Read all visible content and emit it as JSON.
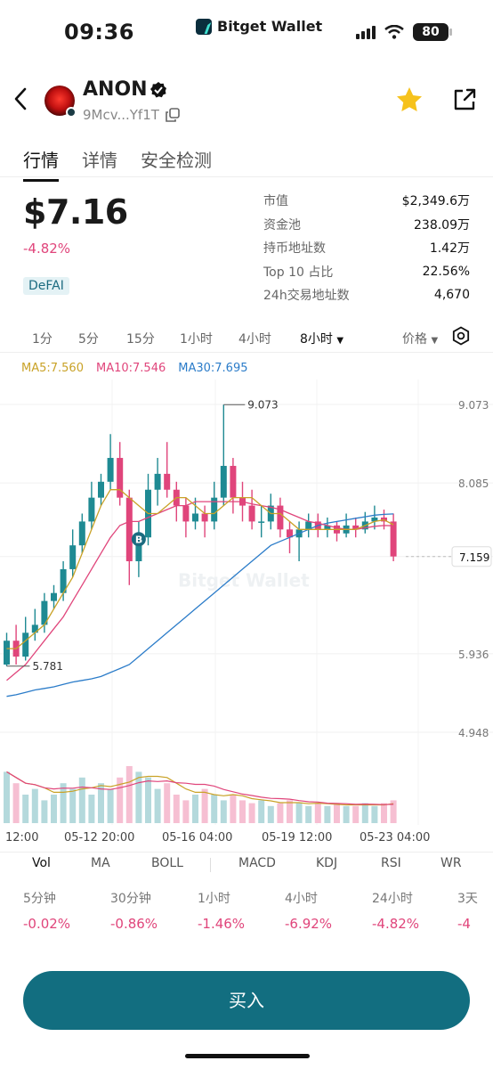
{
  "status": {
    "time": "09:36",
    "app_name": "Bitget Wallet",
    "battery": "80"
  },
  "header": {
    "token_name": "ANON",
    "address": "9Mcv...Yf1T",
    "avatar_icon": "anon-logo",
    "star_color": "#f6c21c"
  },
  "tabs": [
    {
      "label": "行情",
      "active": true
    },
    {
      "label": "详情"
    },
    {
      "label": "安全检测"
    }
  ],
  "price": {
    "value": "$7.16",
    "change": "-4.82%",
    "tag": "DeFAI"
  },
  "stats": [
    {
      "label": "市值",
      "value": "$2,349.6万"
    },
    {
      "label": "资金池",
      "value": "238.09万"
    },
    {
      "label": "持币地址数",
      "value": "1.42万"
    },
    {
      "label": "Top 10 占比",
      "value": "22.56%"
    },
    {
      "label": "24h交易地址数",
      "value": "4,670"
    }
  ],
  "intervals": [
    "1分",
    "5分",
    "15分",
    "1小时",
    "4小时",
    "8小时",
    "价格"
  ],
  "selected_interval": "8小时",
  "ma": {
    "ma5": "MA5:7.560",
    "ma10": "MA10:7.546",
    "ma30": "MA30:7.695",
    "colors": {
      "ma5": "#c9a227",
      "ma10": "#e0457b",
      "ma30": "#2b7cc9"
    }
  },
  "chart_data": {
    "type": "candlestick",
    "y_ticks": [
      "9.073",
      "8.085",
      "7.159",
      "5.936",
      "4.948"
    ],
    "x_ticks": [
      "12:00",
      "05-12 20:00",
      "05-16 04:00",
      "05-19 12:00",
      "05-23 04:00"
    ],
    "high_label": "9.073",
    "low_label": "5.781",
    "current_price": "7.159",
    "marker": "B",
    "watermark": "Bitget Wallet",
    "ylim": [
      4.948,
      9.073
    ],
    "up_color": "#1f8a93",
    "down_color": "#e0457b",
    "candles": [
      [
        5.8,
        6.1,
        6.2,
        5.78
      ],
      [
        6.1,
        5.9,
        6.3,
        5.8
      ],
      [
        5.9,
        6.2,
        6.4,
        5.85
      ],
      [
        6.2,
        6.3,
        6.5,
        6.1
      ],
      [
        6.3,
        6.6,
        6.7,
        6.2
      ],
      [
        6.6,
        6.7,
        6.8,
        6.5
      ],
      [
        6.7,
        7.0,
        7.1,
        6.6
      ],
      [
        7.0,
        7.3,
        7.5,
        6.9
      ],
      [
        7.3,
        7.6,
        7.7,
        7.2
      ],
      [
        7.6,
        7.9,
        8.1,
        7.5
      ],
      [
        7.9,
        8.1,
        8.2,
        7.8
      ],
      [
        8.1,
        8.4,
        8.7,
        8.0
      ],
      [
        8.4,
        7.9,
        8.6,
        7.8
      ],
      [
        7.9,
        7.1,
        8.0,
        6.8
      ],
      [
        7.1,
        7.4,
        7.6,
        6.9
      ],
      [
        7.4,
        8.0,
        8.2,
        7.3
      ],
      [
        8.0,
        8.2,
        8.4,
        7.8
      ],
      [
        8.2,
        8.0,
        8.6,
        7.9
      ],
      [
        8.0,
        7.8,
        8.1,
        7.6
      ],
      [
        7.8,
        7.6,
        7.9,
        7.4
      ],
      [
        7.6,
        7.7,
        7.9,
        7.5
      ],
      [
        7.7,
        7.6,
        7.8,
        7.4
      ],
      [
        7.6,
        7.9,
        8.1,
        7.5
      ],
      [
        7.9,
        8.3,
        9.07,
        7.8
      ],
      [
        8.3,
        7.9,
        8.4,
        7.7
      ],
      [
        7.9,
        7.8,
        8.1,
        7.6
      ],
      [
        7.8,
        7.6,
        8.0,
        7.5
      ],
      [
        7.6,
        7.6,
        7.8,
        7.4
      ],
      [
        7.6,
        7.8,
        7.95,
        7.5
      ],
      [
        7.8,
        7.5,
        7.9,
        7.4
      ],
      [
        7.5,
        7.4,
        7.6,
        7.2
      ],
      [
        7.4,
        7.5,
        7.6,
        7.1
      ],
      [
        7.5,
        7.6,
        7.7,
        7.4
      ],
      [
        7.6,
        7.5,
        7.7,
        7.4
      ],
      [
        7.5,
        7.55,
        7.65,
        7.4
      ],
      [
        7.55,
        7.45,
        7.6,
        7.35
      ],
      [
        7.45,
        7.55,
        7.7,
        7.4
      ],
      [
        7.55,
        7.5,
        7.65,
        7.4
      ],
      [
        7.5,
        7.6,
        7.72,
        7.45
      ],
      [
        7.6,
        7.65,
        7.8,
        7.5
      ],
      [
        7.65,
        7.6,
        7.75,
        7.5
      ],
      [
        7.6,
        7.16,
        7.7,
        7.1
      ]
    ],
    "ma5": [
      6.0,
      6.0,
      6.1,
      6.2,
      6.3,
      6.5,
      6.7,
      6.9,
      7.2,
      7.5,
      7.8,
      8.0,
      8.0,
      7.9,
      7.8,
      7.7,
      7.7,
      7.8,
      7.9,
      7.9,
      7.8,
      7.7,
      7.7,
      7.8,
      7.9,
      7.9,
      7.9,
      7.8,
      7.7,
      7.7,
      7.6,
      7.5,
      7.5,
      7.5,
      7.5,
      7.5,
      7.5,
      7.5,
      7.55,
      7.6,
      7.62,
      7.56
    ],
    "ma10": [
      5.6,
      5.7,
      5.8,
      5.95,
      6.1,
      6.25,
      6.4,
      6.6,
      6.8,
      7.0,
      7.2,
      7.4,
      7.55,
      7.6,
      7.6,
      7.65,
      7.7,
      7.75,
      7.8,
      7.8,
      7.85,
      7.85,
      7.85,
      7.85,
      7.85,
      7.85,
      7.82,
      7.8,
      7.78,
      7.75,
      7.7,
      7.65,
      7.6,
      7.58,
      7.55,
      7.52,
      7.5,
      7.5,
      7.52,
      7.54,
      7.55,
      7.546
    ],
    "ma30": [
      5.4,
      5.42,
      5.45,
      5.48,
      5.5,
      5.52,
      5.55,
      5.58,
      5.6,
      5.62,
      5.65,
      5.7,
      5.75,
      5.8,
      5.9,
      6.0,
      6.1,
      6.2,
      6.3,
      6.4,
      6.5,
      6.6,
      6.7,
      6.8,
      6.9,
      7.0,
      7.1,
      7.2,
      7.3,
      7.35,
      7.4,
      7.45,
      7.5,
      7.55,
      7.58,
      7.6,
      7.62,
      7.64,
      7.66,
      7.68,
      7.69,
      7.695
    ],
    "volumes": [
      0.9,
      0.7,
      0.5,
      0.6,
      0.4,
      0.5,
      0.7,
      0.6,
      0.8,
      0.5,
      0.7,
      0.6,
      0.8,
      1.0,
      0.9,
      0.8,
      0.6,
      0.7,
      0.5,
      0.4,
      0.5,
      0.6,
      0.5,
      0.4,
      0.5,
      0.4,
      0.35,
      0.4,
      0.3,
      0.35,
      0.4,
      0.35,
      0.3,
      0.35,
      0.3,
      0.35,
      0.3,
      0.3,
      0.35,
      0.3,
      0.35,
      0.4
    ]
  },
  "indicator_tabs": [
    "Vol",
    "MA",
    "BOLL",
    "MACD",
    "KDJ",
    "RSI",
    "WR"
  ],
  "selected_indicator": "Vol",
  "performance": [
    {
      "label": "5分钟",
      "value": "-0.02%"
    },
    {
      "label": "30分钟",
      "value": "-0.86%"
    },
    {
      "label": "1小时",
      "value": "-1.46%"
    },
    {
      "label": "4小时",
      "value": "-6.92%"
    },
    {
      "label": "24小时",
      "value": "-4.82%"
    },
    {
      "label": "3天",
      "value": "-4"
    }
  ],
  "buy_label": "买入"
}
